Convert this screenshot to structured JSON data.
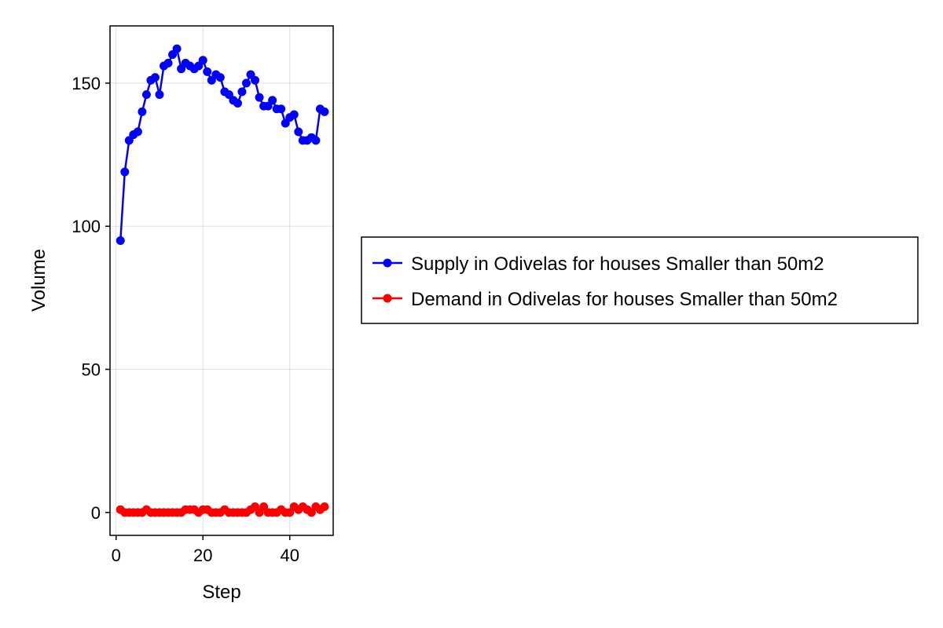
{
  "chart_data": {
    "type": "line",
    "title": "",
    "xlabel": "Step",
    "ylabel": "Volume",
    "xlim": [
      -1.4,
      50
    ],
    "ylim": [
      -8,
      170
    ],
    "xticks": [
      0,
      20,
      40
    ],
    "yticks": [
      0,
      50,
      100,
      150
    ],
    "grid": true,
    "legend_position": "right",
    "x": [
      1,
      2,
      3,
      4,
      5,
      6,
      7,
      8,
      9,
      10,
      11,
      12,
      13,
      14,
      15,
      16,
      17,
      18,
      19,
      20,
      21,
      22,
      23,
      24,
      25,
      26,
      27,
      28,
      29,
      30,
      31,
      32,
      33,
      34,
      35,
      36,
      37,
      38,
      39,
      40,
      41,
      42,
      43,
      44,
      45,
      46,
      47,
      48
    ],
    "series": [
      {
        "name": "Supply in Odivelas for houses Smaller than 50m2",
        "color": "#0000ff",
        "marker": "circle",
        "values": [
          95,
          119,
          130,
          132,
          133,
          140,
          146,
          151,
          152,
          146,
          156,
          157,
          160,
          162,
          155,
          157,
          156,
          155,
          156,
          158,
          154,
          151,
          153,
          152,
          147,
          146,
          144,
          143,
          147,
          150,
          153,
          151,
          145,
          142,
          142,
          144,
          141,
          141,
          136,
          138,
          139,
          133,
          130,
          130,
          131,
          130,
          141,
          140
        ]
      },
      {
        "name": "Demand in Odivelas for houses Smaller than 50m2",
        "color": "#ff0000",
        "marker": "circle",
        "values": [
          1,
          0,
          0,
          0,
          0,
          0,
          1,
          0,
          0,
          0,
          0,
          0,
          0,
          0,
          0,
          1,
          1,
          1,
          0,
          1,
          1,
          0,
          0,
          0,
          1,
          0,
          0,
          0,
          0,
          0,
          1,
          2,
          0,
          2,
          0,
          0,
          0,
          1,
          0,
          0,
          2,
          1,
          2,
          1,
          0,
          2,
          1,
          2
        ]
      }
    ]
  }
}
